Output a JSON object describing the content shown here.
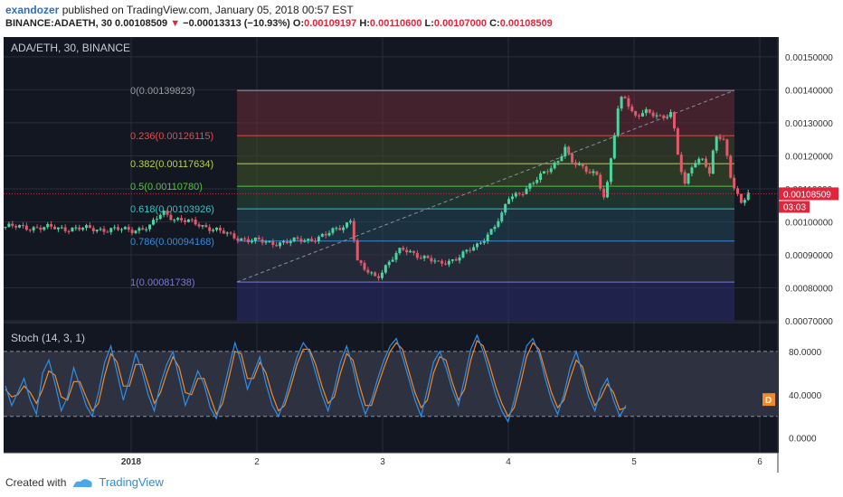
{
  "header": {
    "user": "exandozer",
    "published": "published on TradingView.com, January 05, 2018 00:57 EST",
    "symbol_line": "BINANCE:ADAETH, 30",
    "last": "0.00108509",
    "change": "−0.00013313 (−10.93%)",
    "o_label": "O:",
    "o": "0.00109197",
    "h_label": "H:",
    "h": "0.00110600",
    "l_label": "L:",
    "l": "0.00107000",
    "c_label": "C:",
    "c": "0.00108509"
  },
  "footer": {
    "created_with": "Created with",
    "brand": "TradingView"
  },
  "colors": {
    "background": "#131722",
    "up": "#4bd6a0",
    "down": "#e05a6a",
    "grid": "#2a2e39",
    "stoch_k": "#2f8fe8",
    "stoch_d": "#f08a2a",
    "price_tag": "#e0263c"
  },
  "chart_data": [
    {
      "type": "candlestick",
      "title": "ADA/ETH, 30, BINANCE",
      "x_ticks": [
        "2018",
        "2",
        "3",
        "4",
        "5",
        "6"
      ],
      "y_ticks": [
        "0.00150000",
        "0.00140000",
        "0.00130000",
        "0.00120000",
        "0.00110000",
        "0.00100000",
        "0.00090000",
        "0.00080000",
        "0.00070000"
      ],
      "ylim": [
        0.0007,
        0.00156
      ],
      "last_price_label": "0.00108509",
      "countdown_label": "03:03",
      "fibonacci": [
        {
          "label": "0(0.00139823)",
          "value": 0.00139823
        },
        {
          "label": "0.236(0.00126115)",
          "value": 0.00126115
        },
        {
          "label": "0.382(0.00117634)",
          "value": 0.00117634
        },
        {
          "label": "0.5(0.00110780)",
          "value": 0.0011078
        },
        {
          "label": "0.618(0.00103926)",
          "value": 0.00103926
        },
        {
          "label": "0.786(0.00094168)",
          "value": 0.00094168
        },
        {
          "label": "1(0.00081738)",
          "value": 0.00081738
        }
      ],
      "close_path": [
        [
          0.0,
          0.000975
        ],
        [
          0.15,
          0.000985
        ],
        [
          0.25,
          0.00103
        ],
        [
          0.35,
          0.00101
        ],
        [
          0.5,
          0.000995
        ],
        [
          0.65,
          0.00098
        ],
        [
          0.8,
          0.000955
        ],
        [
          0.95,
          0.000945
        ],
        [
          1.1,
          0.000935
        ],
        [
          1.25,
          0.00094
        ],
        [
          1.4,
          0.000945
        ],
        [
          1.55,
          0.00096
        ],
        [
          1.7,
          0.00099
        ],
        [
          1.75,
          0.00101
        ],
        [
          1.8,
          0.00088
        ],
        [
          1.85,
          0.000855
        ],
        [
          1.95,
          0.00083
        ],
        [
          2.05,
          0.00088
        ],
        [
          2.15,
          0.000915
        ],
        [
          2.25,
          0.000905
        ],
        [
          2.35,
          0.00089
        ],
        [
          2.45,
          0.00087
        ],
        [
          2.55,
          0.000885
        ],
        [
          2.65,
          0.000905
        ],
        [
          2.75,
          0.000925
        ],
        [
          2.85,
          0.00097
        ],
        [
          2.95,
          0.00102
        ],
        [
          3.0,
          0.00107
        ],
        [
          3.1,
          0.00109
        ],
        [
          3.2,
          0.00112
        ],
        [
          3.3,
          0.00115
        ],
        [
          3.4,
          0.00119
        ],
        [
          3.45,
          0.00123
        ],
        [
          3.5,
          0.00118
        ],
        [
          3.6,
          0.00116
        ],
        [
          3.7,
          0.00115
        ],
        [
          3.77,
          0.00106
        ],
        [
          3.82,
          0.0012
        ],
        [
          3.88,
          0.00136
        ],
        [
          3.92,
          0.00139
        ],
        [
          4.0,
          0.00132
        ],
        [
          4.1,
          0.00133
        ],
        [
          4.2,
          0.00132
        ],
        [
          4.3,
          0.00133
        ],
        [
          4.35,
          0.0012
        ],
        [
          4.4,
          0.0011
        ],
        [
          4.45,
          0.00117
        ],
        [
          4.55,
          0.0012
        ],
        [
          4.6,
          0.00114
        ],
        [
          4.65,
          0.00126
        ],
        [
          4.72,
          0.00124
        ],
        [
          4.78,
          0.00112
        ],
        [
          4.85,
          0.00106
        ],
        [
          4.92,
          0.00108509
        ]
      ]
    },
    {
      "type": "line",
      "title": "Stoch (14, 3, 1)",
      "y_ticks": [
        "80.0000",
        "40.0000",
        "0.0000"
      ],
      "ylim": [
        -12,
        105
      ],
      "band": [
        20,
        80
      ],
      "d_label": "D",
      "k_series": [
        48,
        30,
        42,
        55,
        35,
        22,
        60,
        72,
        50,
        25,
        38,
        65,
        48,
        30,
        20,
        42,
        70,
        85,
        60,
        35,
        55,
        78,
        62,
        40,
        25,
        50,
        68,
        80,
        55,
        30,
        45,
        62,
        50,
        28,
        18,
        40,
        65,
        88,
        70,
        45,
        60,
        75,
        50,
        30,
        20,
        35,
        55,
        75,
        88,
        80,
        60,
        40,
        25,
        45,
        70,
        85,
        65,
        40,
        22,
        35,
        55,
        72,
        85,
        92,
        75,
        55,
        35,
        20,
        45,
        70,
        80,
        65,
        45,
        30,
        55,
        82,
        95,
        80,
        60,
        40,
        25,
        15,
        35,
        60,
        85,
        92,
        78,
        55,
        35,
        22,
        40,
        65,
        80,
        60,
        38,
        25,
        45,
        55,
        35,
        20,
        30
      ],
      "d_series": [
        45,
        38,
        40,
        48,
        42,
        32,
        45,
        62,
        58,
        38,
        35,
        52,
        52,
        38,
        25,
        32,
        58,
        78,
        70,
        48,
        48,
        68,
        68,
        50,
        32,
        42,
        60,
        75,
        65,
        42,
        40,
        55,
        55,
        38,
        22,
        32,
        55,
        80,
        78,
        55,
        55,
        70,
        60,
        40,
        25,
        30,
        48,
        68,
        82,
        82,
        68,
        48,
        32,
        38,
        60,
        78,
        72,
        50,
        30,
        30,
        48,
        65,
        80,
        88,
        82,
        62,
        42,
        28,
        35,
        60,
        75,
        72,
        52,
        35,
        45,
        72,
        90,
        85,
        68,
        48,
        32,
        20,
        28,
        50,
        75,
        88,
        82,
        62,
        42,
        28,
        35,
        55,
        72,
        66,
        45,
        30,
        38,
        50,
        42,
        26,
        28
      ]
    }
  ]
}
